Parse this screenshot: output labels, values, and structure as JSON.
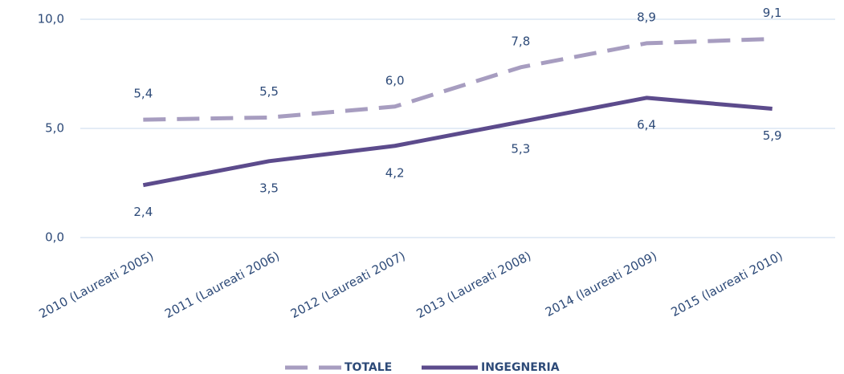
{
  "chart_data": {
    "type": "line",
    "categories": [
      "2010 (Laureati 2005)",
      "2011 (Laureati 2006)",
      "2012 (Laureati 2007)",
      "2013 (Laureati 2008)",
      "2014 (laureati 2009)",
      "2015 (laureati 2010)"
    ],
    "series": [
      {
        "name": "TOTALE",
        "color": "#a79dc0",
        "dashed": true,
        "values": [
          5.4,
          5.5,
          6.0,
          7.8,
          8.9,
          9.1
        ],
        "value_labels": [
          "5,4",
          "5,5",
          "6,0",
          "7,8",
          "8,9",
          "9,1"
        ]
      },
      {
        "name": "INGEGNERIA",
        "color": "#5c4b8c",
        "dashed": false,
        "values": [
          2.4,
          3.5,
          4.2,
          5.3,
          6.4,
          5.9
        ],
        "value_labels": [
          "2,4",
          "3,5",
          "4,2",
          "5,3",
          "6,4",
          "5,9"
        ]
      }
    ],
    "ylim": [
      0,
      10
    ],
    "yticks": [
      {
        "value": 0,
        "label": "0,0"
      },
      {
        "value": 5,
        "label": "5,0"
      },
      {
        "value": 10,
        "label": "10,0"
      }
    ],
    "grid": true,
    "legend": "bottom"
  }
}
